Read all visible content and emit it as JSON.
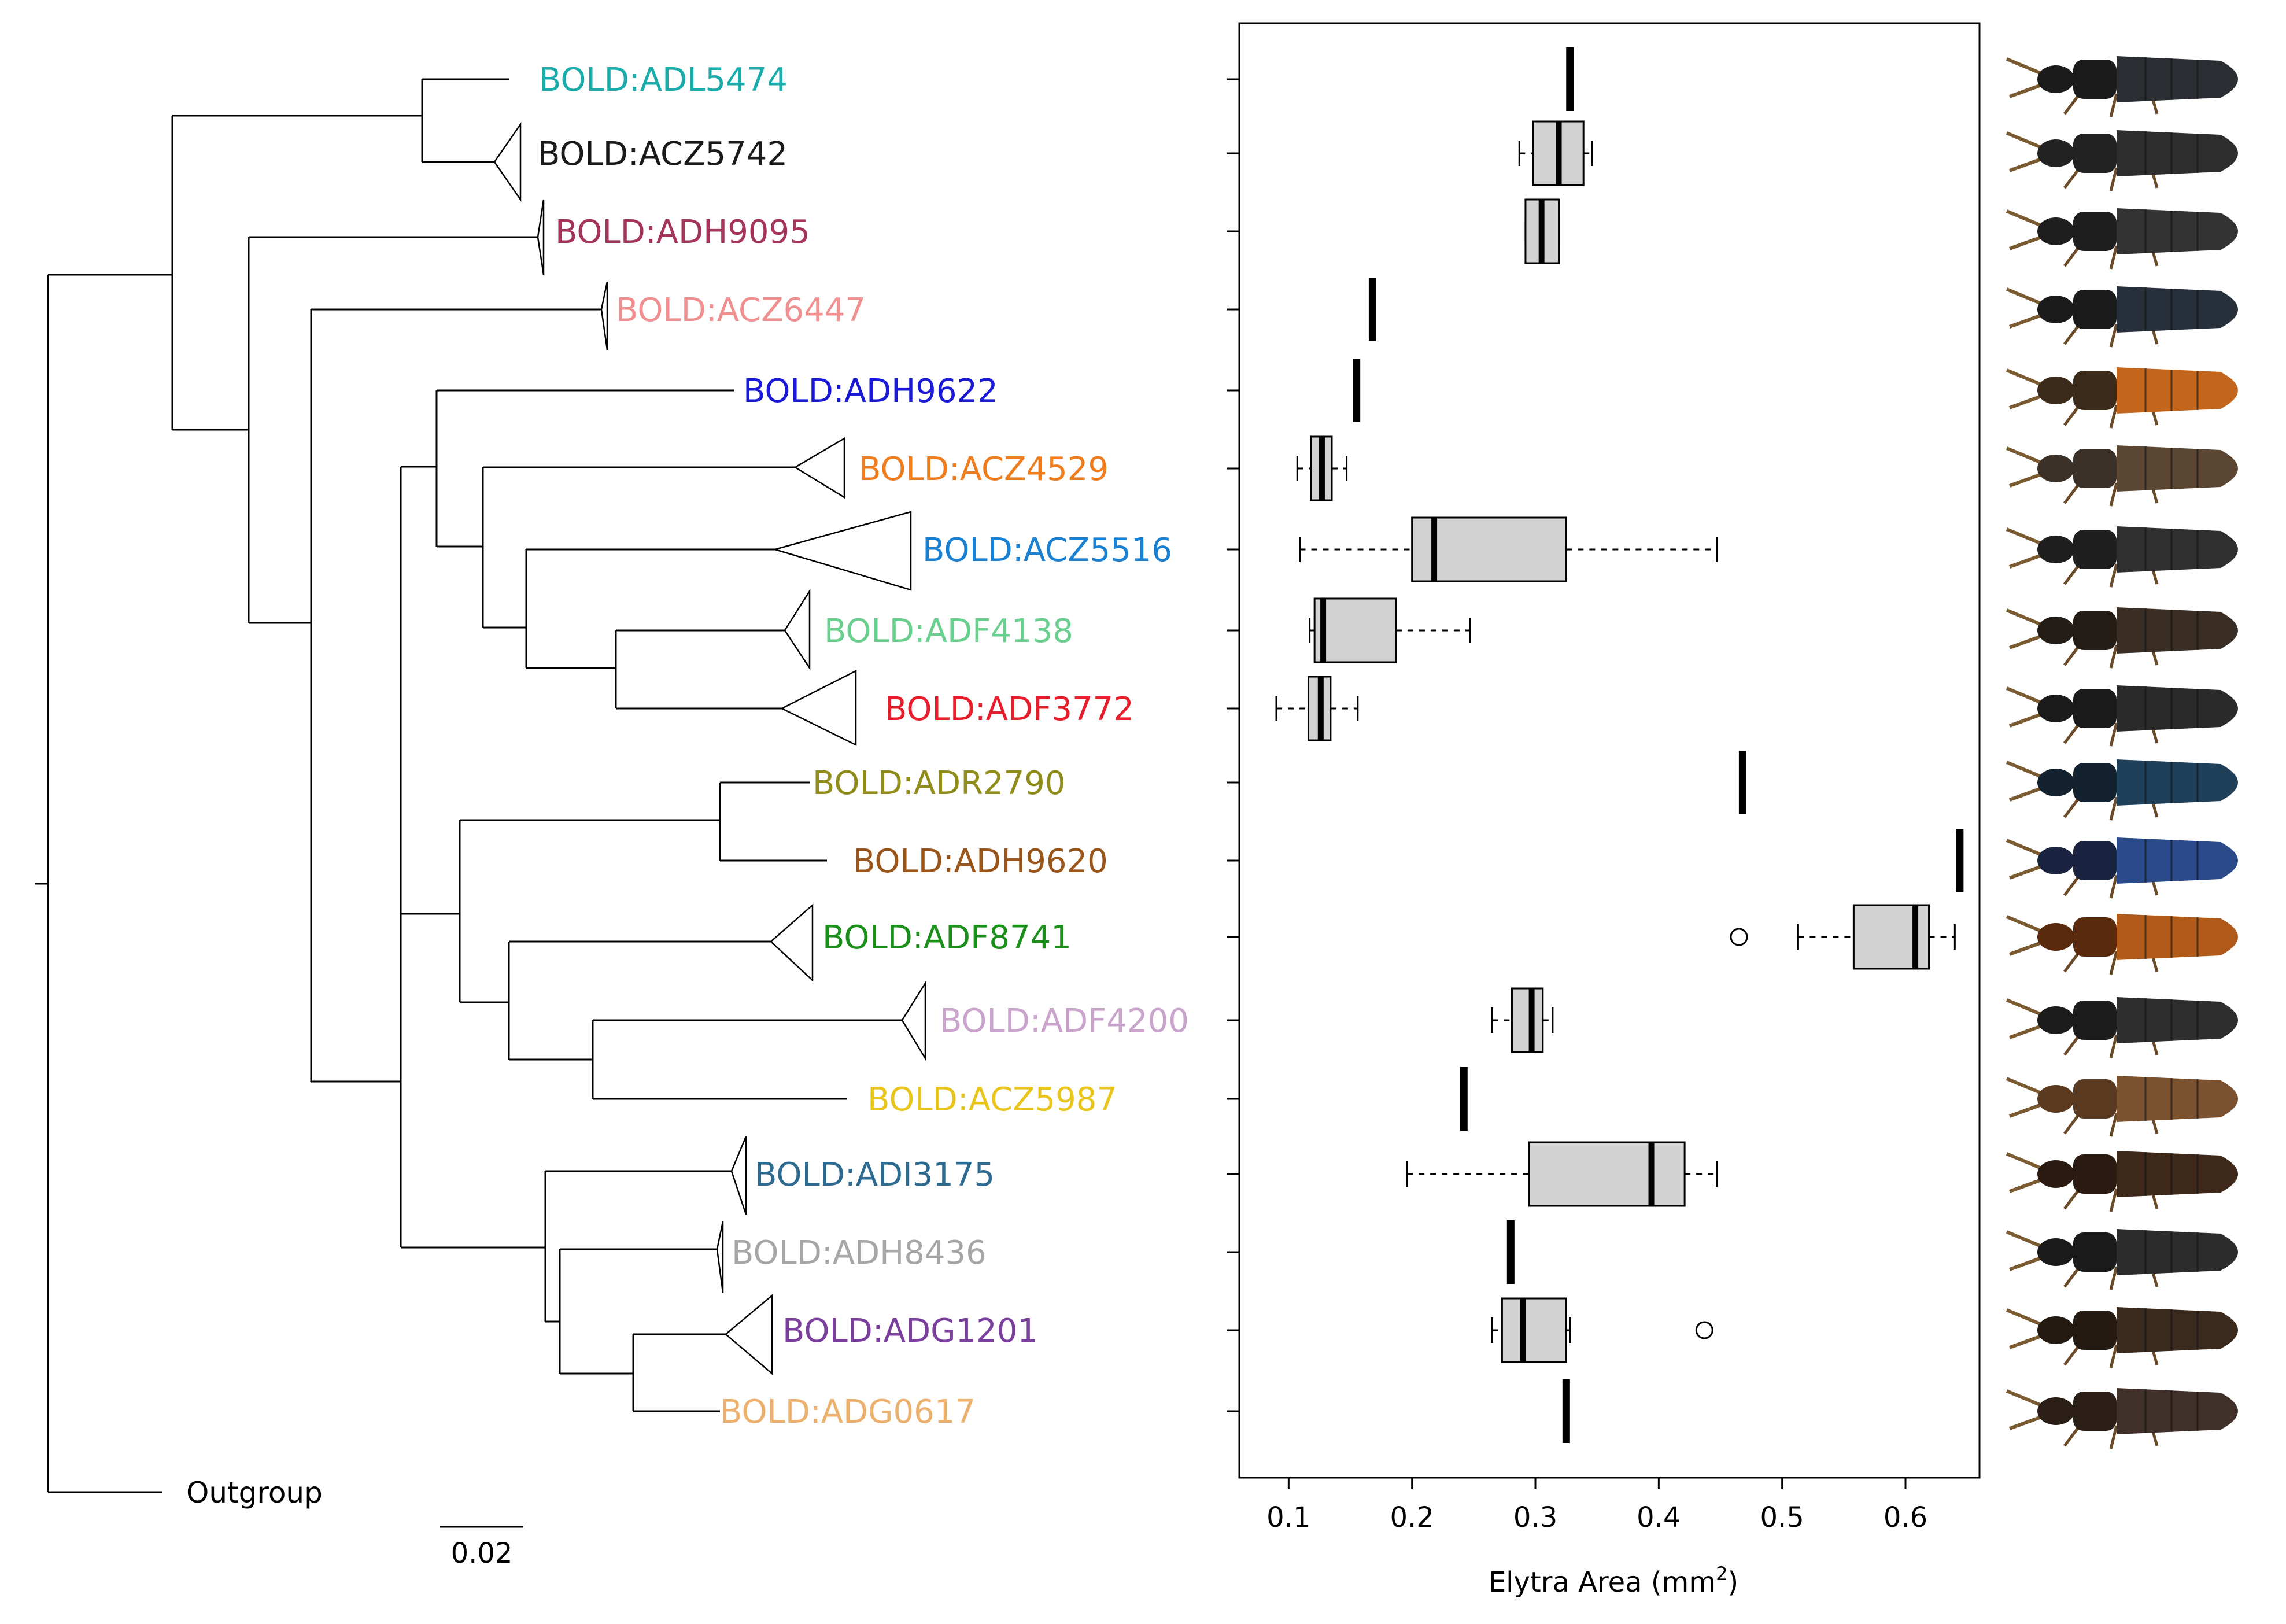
{
  "chart_data": {
    "type": "boxplot",
    "xlabel": "Elytra Area (mm²)",
    "xlabel_main": "Elytra Area (mm",
    "xlabel_sup": "2",
    "xlabel_close": ")",
    "xlim": [
      0.06,
      0.66
    ],
    "xticks": [
      0.1,
      0.2,
      0.3,
      0.4,
      0.5,
      0.6
    ],
    "xtick_labels": [
      "0.1",
      "0.2",
      "0.3",
      "0.4",
      "0.5",
      "0.6"
    ],
    "tree_scale_bar": "0.02",
    "outgroup_label": "Outgroup",
    "taxa": [
      {
        "label": "BOLD:ADL5474",
        "color": "#1aabab",
        "single": 0.328
      },
      {
        "label": "BOLD:ACZ5742",
        "color": "#1a1a1a",
        "min": 0.287,
        "q1": 0.298,
        "median": 0.319,
        "q3": 0.339,
        "max": 0.346
      },
      {
        "label": "BOLD:ADH9095",
        "color": "#a5345d",
        "min": 0.292,
        "q1": 0.292,
        "median": 0.305,
        "q3": 0.319,
        "max": 0.319
      },
      {
        "label": "BOLD:ACZ6447",
        "color": "#ef8f8f",
        "single": 0.168
      },
      {
        "label": "BOLD:ADH9622",
        "color": "#1a1ad6",
        "single": 0.155
      },
      {
        "label": "BOLD:ACZ4529",
        "color": "#ef7d1e",
        "min": 0.107,
        "q1": 0.118,
        "median": 0.127,
        "q3": 0.135,
        "max": 0.147
      },
      {
        "label": "BOLD:ACZ5516",
        "color": "#1a80d2",
        "min": 0.109,
        "q1": 0.2,
        "median": 0.218,
        "q3": 0.325,
        "max": 0.447
      },
      {
        "label": "BOLD:ADF4138",
        "color": "#6acf8e",
        "min": 0.117,
        "q1": 0.121,
        "median": 0.128,
        "q3": 0.187,
        "max": 0.247
      },
      {
        "label": "BOLD:ADF3772",
        "color": "#e81d2b",
        "min": 0.09,
        "q1": 0.116,
        "median": 0.126,
        "q3": 0.134,
        "max": 0.156
      },
      {
        "label": "BOLD:ADR2790",
        "color": "#8f8c1a",
        "single": 0.468
      },
      {
        "label": "BOLD:ADH9620",
        "color": "#9a561a",
        "single": 0.644
      },
      {
        "label": "BOLD:ADF8741",
        "color": "#1a8f1a",
        "min": 0.513,
        "q1": 0.558,
        "median": 0.608,
        "q3": 0.619,
        "max": 0.64,
        "outliers": [
          0.465
        ]
      },
      {
        "label": "BOLD:ADF4200",
        "color": "#c9a3cb",
        "min": 0.265,
        "q1": 0.281,
        "median": 0.297,
        "q3": 0.306,
        "max": 0.314
      },
      {
        "label": "BOLD:ACZ5987",
        "color": "#e9c41a",
        "single": 0.242
      },
      {
        "label": "BOLD:ADI3175",
        "color": "#2c6a8f",
        "min": 0.196,
        "q1": 0.295,
        "median": 0.394,
        "q3": 0.421,
        "max": 0.447
      },
      {
        "label": "BOLD:ADH8436",
        "color": "#a6a6a6",
        "single": 0.28
      },
      {
        "label": "BOLD:ADG1201",
        "color": "#7a3f9c",
        "min": 0.265,
        "q1": 0.273,
        "median": 0.29,
        "q3": 0.325,
        "max": 0.328,
        "outliers": [
          0.437
        ]
      },
      {
        "label": "BOLD:ADG0617",
        "color": "#ecb06e",
        "single": 0.325
      }
    ]
  }
}
